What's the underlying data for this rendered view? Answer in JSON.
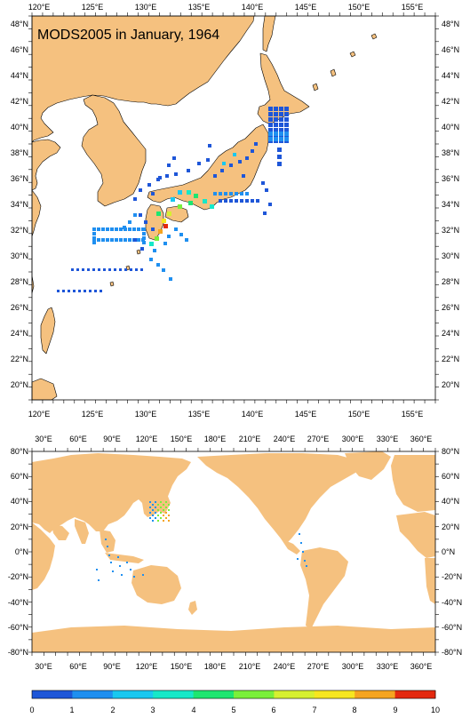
{
  "title": "MODS2005 in January, 1964",
  "colors": {
    "land": "#f5c17f",
    "ocean": "#ffffff",
    "frame": "#000000",
    "coast": "#000000"
  },
  "regional_map": {
    "lon_range": [
      119,
      158
    ],
    "lat_range": [
      18.5,
      49.5
    ],
    "top_lon_labels": [
      "120°E",
      "125°E",
      "130°E",
      "135°E",
      "140°E",
      "145°E",
      "150°E",
      "155°E"
    ],
    "bottom_lon_labels": [
      "120°E",
      "125°E",
      "130°E",
      "135°E",
      "140°E",
      "145°E",
      "150°E",
      "155°E"
    ],
    "left_lat_labels": [
      "48°N",
      "46°N",
      "44°N",
      "42°N",
      "40°N",
      "38°N",
      "36°N",
      "34°N",
      "32°N",
      "30°N",
      "28°N",
      "26°N",
      "24°N",
      "22°N",
      "20°N"
    ],
    "right_lat_labels": [
      "48°N",
      "46°N",
      "44°N",
      "42°N",
      "40°N",
      "38°N",
      "36°N",
      "34°N",
      "32°N",
      "30°N",
      "28°N",
      "26°N",
      "24°N",
      "22°N",
      "20°N"
    ]
  },
  "global_map": {
    "lon_range": [
      20,
      372
    ],
    "lat_range": [
      -80,
      80
    ],
    "top_lon_labels": [
      "30°E",
      "60°E",
      "90°E",
      "120°E",
      "150°E",
      "180°E",
      "210°E",
      "240°E",
      "270°E",
      "300°E",
      "330°E",
      "360°E"
    ],
    "bottom_lon_labels": [
      "30°E",
      "60°E",
      "90°E",
      "120°E",
      "150°E",
      "180°E",
      "210°E",
      "240°E",
      "270°E",
      "300°E",
      "330°E",
      "360°E"
    ],
    "left_lat_labels": [
      "80°N",
      "60°N",
      "40°N",
      "20°N",
      "0°N",
      "-20°N",
      "-40°N",
      "-60°N",
      "-80°N"
    ],
    "right_lat_labels": [
      "80°N",
      "60°N",
      "40°N",
      "20°N",
      "0°N",
      "-20°N",
      "-40°N",
      "-60°N",
      "-80°N"
    ]
  },
  "colorbar": {
    "labels": [
      "0",
      "1",
      "2",
      "3",
      "4",
      "5",
      "6",
      "7",
      "8",
      "9",
      "10"
    ],
    "colors": [
      "#1e56d8",
      "#1f8ff0",
      "#19c8f0",
      "#16e8c8",
      "#1ee670",
      "#7af03a",
      "#d6f030",
      "#f6e620",
      "#f5a420",
      "#e4280e"
    ]
  }
}
